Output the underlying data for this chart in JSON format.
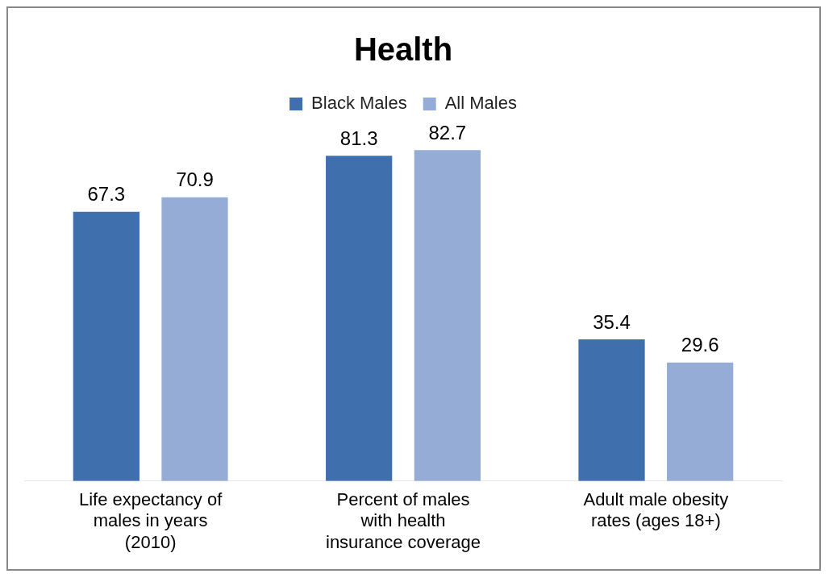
{
  "chart_data": {
    "type": "bar",
    "title": "Health",
    "categories": [
      "Life expectancy of males in years (2010)",
      "Percent of males with health insurance coverage",
      "Adult male obesity rates (ages 18+)"
    ],
    "series": [
      {
        "name": "Black Males",
        "color": "#3f6fad",
        "values": [
          67.3,
          81.3,
          35.4
        ]
      },
      {
        "name": "All Males",
        "color": "#95acd6",
        "values": [
          70.9,
          82.7,
          29.6
        ]
      }
    ],
    "data_labels": true,
    "legend": "top",
    "grid": false
  }
}
